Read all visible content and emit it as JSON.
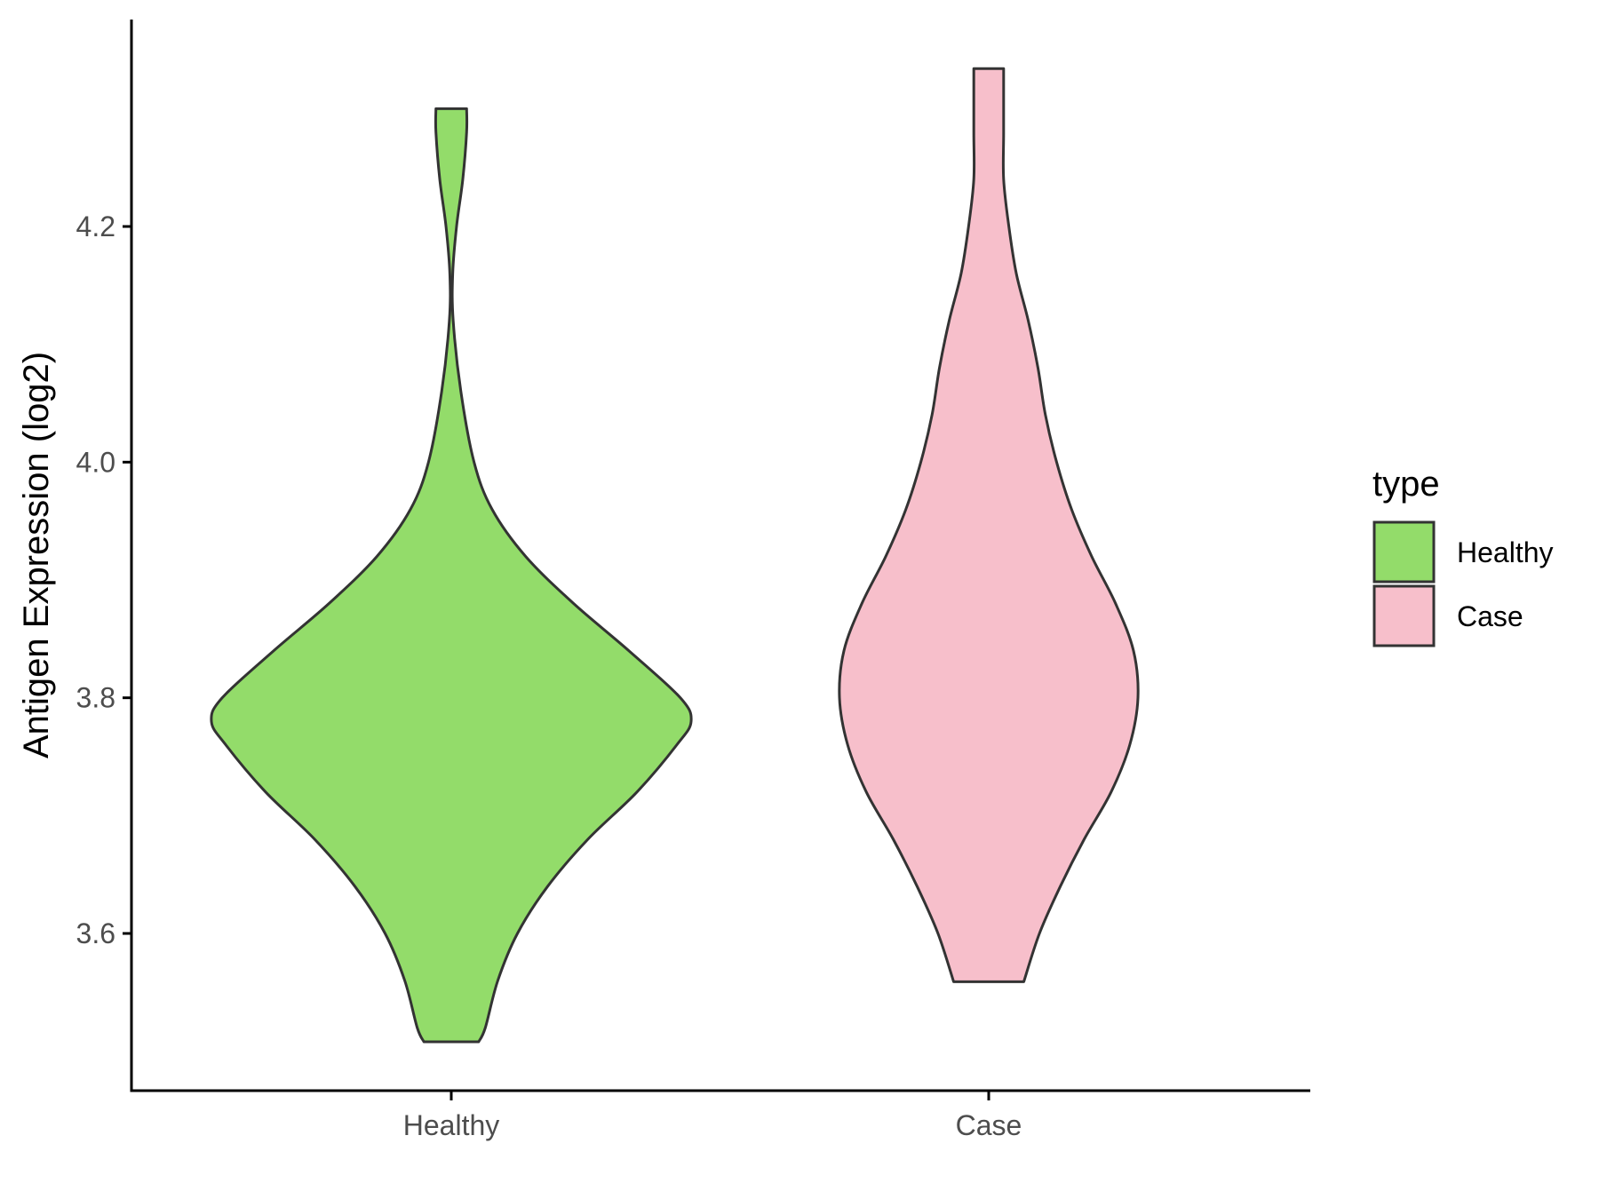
{
  "chart_data": {
    "type": "violin",
    "title": "",
    "xlabel": "",
    "ylabel": "Antigen Expression (log2)",
    "ylim": [
      3.48,
      4.37
    ],
    "yticks": [
      3.6,
      3.8,
      4.0,
      4.2
    ],
    "ytick_labels": [
      "3.6",
      "3.8",
      "4.0",
      "4.2"
    ],
    "categories": [
      "Healthy",
      "Case"
    ],
    "legend": {
      "title": "type",
      "position": "right",
      "entries": [
        "Healthy",
        "Case"
      ]
    },
    "grid": false,
    "colors": {
      "Healthy": "#93dc6a",
      "Case": "#f7bfcb",
      "outline": "#333333"
    },
    "series": [
      {
        "name": "Healthy",
        "min": 3.508,
        "max": 4.3,
        "density_profile": [
          {
            "y": 3.508,
            "w": 0.114
          },
          {
            "y": 3.52,
            "w": 0.142
          },
          {
            "y": 3.56,
            "w": 0.194
          },
          {
            "y": 3.6,
            "w": 0.276
          },
          {
            "y": 3.64,
            "w": 0.402
          },
          {
            "y": 3.68,
            "w": 0.57
          },
          {
            "y": 3.72,
            "w": 0.774
          },
          {
            "y": 3.76,
            "w": 0.94
          },
          {
            "y": 3.78,
            "w": 1.0
          },
          {
            "y": 3.8,
            "w": 0.955
          },
          {
            "y": 3.84,
            "w": 0.74
          },
          {
            "y": 3.88,
            "w": 0.51
          },
          {
            "y": 3.92,
            "w": 0.31
          },
          {
            "y": 3.96,
            "w": 0.17
          },
          {
            "y": 4.0,
            "w": 0.095
          },
          {
            "y": 4.06,
            "w": 0.04
          },
          {
            "y": 4.12,
            "w": 0.008
          },
          {
            "y": 4.16,
            "w": 0.006
          },
          {
            "y": 4.2,
            "w": 0.022
          },
          {
            "y": 4.24,
            "w": 0.048
          },
          {
            "y": 4.28,
            "w": 0.064
          },
          {
            "y": 4.3,
            "w": 0.064
          }
        ]
      },
      {
        "name": "Case",
        "min": 3.559,
        "max": 4.334,
        "density_profile": [
          {
            "y": 3.559,
            "w": 0.235
          },
          {
            "y": 3.6,
            "w": 0.34
          },
          {
            "y": 3.64,
            "w": 0.48
          },
          {
            "y": 3.68,
            "w": 0.64
          },
          {
            "y": 3.72,
            "w": 0.82
          },
          {
            "y": 3.76,
            "w": 0.945
          },
          {
            "y": 3.8,
            "w": 1.0
          },
          {
            "y": 3.84,
            "w": 0.97
          },
          {
            "y": 3.88,
            "w": 0.85
          },
          {
            "y": 3.92,
            "w": 0.69
          },
          {
            "y": 3.96,
            "w": 0.555
          },
          {
            "y": 4.0,
            "w": 0.455
          },
          {
            "y": 4.04,
            "w": 0.38
          },
          {
            "y": 4.08,
            "w": 0.33
          },
          {
            "y": 4.12,
            "w": 0.265
          },
          {
            "y": 4.16,
            "w": 0.185
          },
          {
            "y": 4.2,
            "w": 0.135
          },
          {
            "y": 4.24,
            "w": 0.1
          },
          {
            "y": 4.28,
            "w": 0.1
          },
          {
            "y": 4.334,
            "w": 0.1
          }
        ]
      }
    ]
  }
}
